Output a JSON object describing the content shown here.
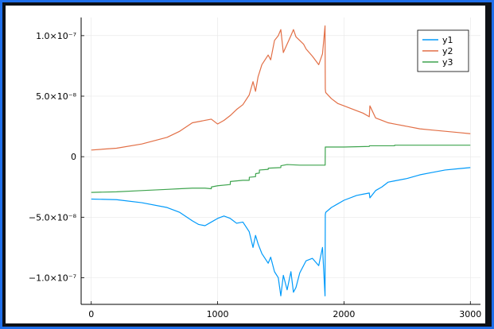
{
  "chart_data": {
    "type": "line",
    "title": "",
    "xlabel": "",
    "ylabel": "",
    "xlim": [
      -80,
      3080
    ],
    "ylim": [
      -1.22e-07,
      1.15e-07
    ],
    "xticks": [
      0,
      1000,
      2000,
      3000
    ],
    "xtick_labels": [
      "0",
      "1000",
      "2000",
      "3000"
    ],
    "yticks": [
      1e-07,
      5e-08,
      0,
      -5e-08,
      -1e-07
    ],
    "ytick_labels": [
      "1.0×10⁻⁷",
      "5.0×10⁻⁸",
      "0",
      "−5.0×10⁻⁸",
      "−1.0×10⁻⁷"
    ],
    "grid": true,
    "legend_position": "top-right",
    "series": [
      {
        "name": "y1",
        "color": "#009AFA",
        "x": [
          0,
          200,
          400,
          600,
          700,
          800,
          850,
          900,
          950,
          1000,
          1050,
          1100,
          1150,
          1200,
          1250,
          1280,
          1300,
          1320,
          1350,
          1400,
          1420,
          1450,
          1480,
          1500,
          1520,
          1550,
          1580,
          1600,
          1620,
          1650,
          1680,
          1700,
          1750,
          1800,
          1830,
          1850,
          1852,
          1855,
          1900,
          1950,
          2000,
          2100,
          2150,
          2200,
          2205,
          2250,
          2300,
          2350,
          2400,
          2500,
          2600,
          2700,
          2800,
          2900,
          3000
        ],
        "y": [
          -3.5e-08,
          -3.55e-08,
          -3.8e-08,
          -4.2e-08,
          -4.6e-08,
          -5.3e-08,
          -5.6e-08,
          -5.7e-08,
          -5.4e-08,
          -5.1e-08,
          -4.9e-08,
          -5.1e-08,
          -5.5e-08,
          -5.4e-08,
          -6.2e-08,
          -7.5e-08,
          -6.5e-08,
          -7.2e-08,
          -8e-08,
          -8.8e-08,
          -8.3e-08,
          -9.5e-08,
          -1e-07,
          -1.15e-07,
          -9.8e-08,
          -1.1e-07,
          -9.5e-08,
          -1.12e-07,
          -1.08e-07,
          -9.6e-08,
          -9e-08,
          -8.6e-08,
          -8.4e-08,
          -9e-08,
          -7.5e-08,
          -1.15e-07,
          -4.8e-08,
          -4.6e-08,
          -4.2e-08,
          -3.9e-08,
          -3.6e-08,
          -3.2e-08,
          -3.1e-08,
          -3e-08,
          -3.4e-08,
          -2.8e-08,
          -2.5e-08,
          -2.1e-08,
          -2e-08,
          -1.8e-08,
          -1.5e-08,
          -1.3e-08,
          -1.1e-08,
          -1e-08,
          -9e-09
        ]
      },
      {
        "name": "y2",
        "color": "#E26F46",
        "x": [
          0,
          200,
          400,
          600,
          700,
          800,
          850,
          900,
          950,
          1000,
          1050,
          1100,
          1150,
          1200,
          1250,
          1280,
          1300,
          1320,
          1350,
          1400,
          1420,
          1450,
          1480,
          1500,
          1520,
          1550,
          1580,
          1600,
          1620,
          1650,
          1680,
          1700,
          1750,
          1800,
          1830,
          1850,
          1852,
          1855,
          1900,
          1950,
          2000,
          2100,
          2150,
          2200,
          2205,
          2250,
          2300,
          2350,
          2400,
          2500,
          2600,
          2700,
          2800,
          2900,
          3000
        ],
        "y": [
          5.5e-09,
          7e-09,
          1.05e-08,
          1.6e-08,
          2.1e-08,
          2.8e-08,
          2.9e-08,
          3e-08,
          3.1e-08,
          2.7e-08,
          3e-08,
          3.4e-08,
          3.9e-08,
          4.3e-08,
          5.1e-08,
          6.2e-08,
          5.4e-08,
          6.6e-08,
          7.6e-08,
          8.4e-08,
          8e-08,
          9.6e-08,
          1e-07,
          1.05e-07,
          8.6e-08,
          9.3e-08,
          1e-07,
          1.05e-07,
          9.9e-08,
          9.6e-08,
          9.3e-08,
          8.9e-08,
          8.3e-08,
          7.6e-08,
          8.5e-08,
          1.08e-07,
          5.6e-08,
          5.3e-08,
          4.8e-08,
          4.4e-08,
          4.2e-08,
          3.8e-08,
          3.6e-08,
          3.3e-08,
          4.2e-08,
          3.2e-08,
          3e-08,
          2.8e-08,
          2.7e-08,
          2.5e-08,
          2.3e-08,
          2.2e-08,
          2.1e-08,
          2e-08,
          1.9e-08
        ]
      },
      {
        "name": "y3",
        "color": "#3EA44E",
        "x": [
          0,
          200,
          400,
          600,
          700,
          800,
          900,
          950,
          951,
          1000,
          1100,
          1101,
          1200,
          1250,
          1251,
          1300,
          1301,
          1330,
          1331,
          1400,
          1401,
          1500,
          1501,
          1550,
          1650,
          1700,
          1800,
          1851,
          1852,
          2000,
          2200,
          2201,
          2400,
          2401,
          3000
        ],
        "y": [
          -2.95e-08,
          -2.9e-08,
          -2.8e-08,
          -2.7e-08,
          -2.65e-08,
          -2.6e-08,
          -2.6e-08,
          -2.65e-08,
          -2.5e-08,
          -2.4e-08,
          -2.3e-08,
          -2.05e-08,
          -1.95e-08,
          -1.95e-08,
          -1.7e-08,
          -1.65e-08,
          -1.4e-08,
          -1.35e-08,
          -1.1e-08,
          -1.05e-08,
          -9.5e-09,
          -9e-09,
          -7.5e-09,
          -6.5e-09,
          -7e-09,
          -7e-09,
          -7e-09,
          -7e-09,
          8e-09,
          8e-09,
          8.5e-09,
          9e-09,
          9e-09,
          9.5e-09,
          9.5e-09
        ]
      }
    ]
  }
}
